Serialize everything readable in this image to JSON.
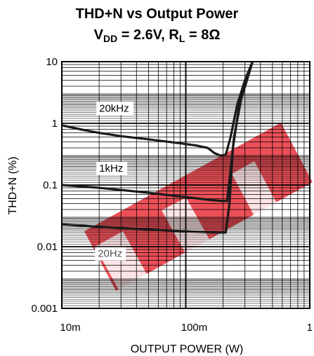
{
  "title": {
    "line1": "THD+N vs Output Power",
    "vdd_symbol": "V",
    "vdd_sub": "DD",
    "vdd_value": " = 2.6V, ",
    "rl_symbol": "R",
    "rl_sub": "L",
    "rl_value": " = 8Ω"
  },
  "chart_data": {
    "type": "line",
    "title": "THD+N vs Output Power",
    "xlabel": "OUTPUT POWER (W)",
    "ylabel": "THD+N (%)",
    "xscale": "log",
    "yscale": "log",
    "xlim": [
      0.01,
      1
    ],
    "ylim": [
      0.001,
      10
    ],
    "xticks": [
      {
        "v": 0.01,
        "label": "10m"
      },
      {
        "v": 0.1,
        "label": "100m"
      },
      {
        "v": 1,
        "label": "1"
      }
    ],
    "yticks": [
      {
        "v": 10,
        "label": "10"
      },
      {
        "v": 1,
        "label": "1"
      },
      {
        "v": 0.1,
        "label": "0.1"
      },
      {
        "v": 0.01,
        "label": "0.01"
      },
      {
        "v": 0.001,
        "label": "0.001"
      }
    ],
    "grid": true,
    "series": [
      {
        "name": "20kHz",
        "color": "#1a1a1a",
        "label_at": {
          "x": 0.02,
          "y": 1.55
        },
        "points": [
          [
            0.01,
            0.93
          ],
          [
            0.015,
            0.78
          ],
          [
            0.02,
            0.7
          ],
          [
            0.03,
            0.62
          ],
          [
            0.05,
            0.55
          ],
          [
            0.08,
            0.49
          ],
          [
            0.12,
            0.44
          ],
          [
            0.15,
            0.4
          ],
          [
            0.17,
            0.33
          ],
          [
            0.19,
            0.3
          ],
          [
            0.21,
            0.31
          ],
          [
            0.23,
            0.6
          ],
          [
            0.26,
            2.0
          ],
          [
            0.3,
            5.0
          ],
          [
            0.345,
            10
          ]
        ]
      },
      {
        "name": "1kHz",
        "color": "#1a1a1a",
        "label_at": {
          "x": 0.02,
          "y": 0.165
        },
        "points": [
          [
            0.01,
            0.1
          ],
          [
            0.02,
            0.09
          ],
          [
            0.03,
            0.083
          ],
          [
            0.05,
            0.075
          ],
          [
            0.08,
            0.067
          ],
          [
            0.12,
            0.061
          ],
          [
            0.16,
            0.057
          ],
          [
            0.2,
            0.055
          ],
          [
            0.215,
            0.055
          ],
          [
            0.225,
            0.12
          ],
          [
            0.245,
            0.6
          ],
          [
            0.28,
            2.5
          ],
          [
            0.32,
            6.0
          ],
          [
            0.345,
            10
          ]
        ]
      },
      {
        "name": "20Hz",
        "color": "#1a1a1a",
        "label_at": {
          "x": 0.0195,
          "y": 0.0068
        },
        "points": [
          [
            0.01,
            0.023
          ],
          [
            0.02,
            0.021
          ],
          [
            0.03,
            0.02
          ],
          [
            0.05,
            0.019
          ],
          [
            0.08,
            0.018
          ],
          [
            0.12,
            0.0175
          ],
          [
            0.18,
            0.017
          ],
          [
            0.21,
            0.017
          ],
          [
            0.225,
            0.05
          ],
          [
            0.24,
            0.4
          ],
          [
            0.27,
            2.0
          ],
          [
            0.31,
            5.5
          ],
          [
            0.345,
            10
          ]
        ]
      }
    ],
    "watermark_color": "#e8323c"
  }
}
